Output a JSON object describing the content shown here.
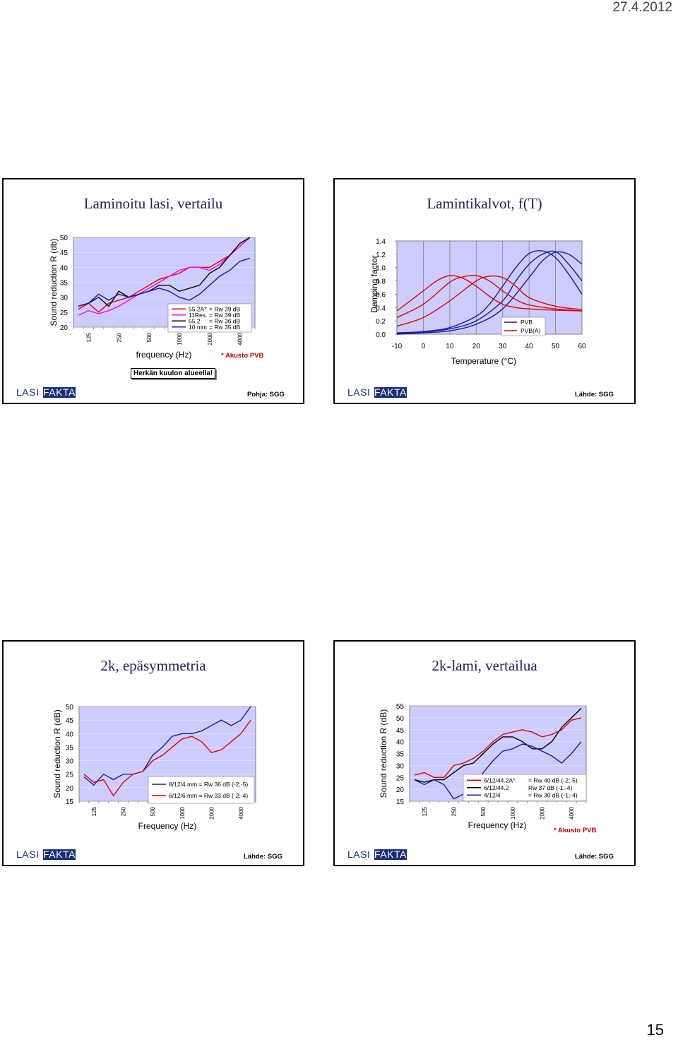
{
  "page": {
    "date": "27.4.2012",
    "page_number": "15"
  },
  "slides": [
    {
      "title": "Laminoitu lasi, vertailu",
      "source": "Pohja: SGG",
      "logo": [
        "LASI",
        "FAKTA"
      ],
      "note": "Herkän kuulon alueella!",
      "star_note": "* Akusto PVB"
    },
    {
      "title": "Lamintikalvot, f(T)",
      "source": "Lähde: SGG",
      "logo": [
        "LASI",
        "FAKTA"
      ]
    },
    {
      "title": "2k, epäsymmetria",
      "source": "Lähde: SGG",
      "logo": [
        "LASI",
        "FAKTA"
      ]
    },
    {
      "title": "2k-lami, vertailua",
      "source": "Lähde: SGG",
      "logo": [
        "LASI",
        "FAKTA"
      ],
      "star_note": "* Akusto PVB"
    }
  ],
  "chart_data": [
    {
      "type": "line",
      "ylabel": "Sound reduction R (db)",
      "xlabel": "frequency (Hz)",
      "x_ticks": [
        "125",
        "250",
        "500",
        "1000",
        "2000",
        "4000"
      ],
      "y_ticks": [
        "20",
        "25",
        "30",
        "35",
        "40",
        "45",
        "50"
      ],
      "ylim": [
        20,
        50
      ],
      "x": [
        100,
        125,
        160,
        200,
        250,
        315,
        400,
        500,
        630,
        800,
        1000,
        1250,
        1600,
        2000,
        2500,
        3150,
        4000,
        5000
      ],
      "series": [
        {
          "name": "55.2A*",
          "rw": "= Rw 39 dB",
          "color": "#e00000",
          "values": [
            26,
            28,
            25,
            28,
            29,
            30,
            32,
            34,
            36,
            37,
            38,
            40,
            40,
            40,
            42,
            44,
            47,
            50
          ]
        },
        {
          "name": "11Res.",
          "rw": "= Rw 39 dB",
          "color": "#ff00ff",
          "values": [
            24,
            25.5,
            24.5,
            25.5,
            27,
            29,
            31,
            33,
            35,
            37,
            39,
            40,
            40,
            39,
            41,
            44,
            47,
            50
          ]
        },
        {
          "name": "55.2",
          "rw": "= Rw 36 dB",
          "color": "#000000",
          "values": [
            27,
            28,
            30,
            27,
            32,
            30,
            31,
            32,
            34,
            34,
            32,
            33,
            34,
            38,
            40,
            44,
            48,
            50
          ]
        },
        {
          "name": "10 mm",
          "rw": "= Rw 35 dB",
          "color": "#1a1aa0",
          "values": [
            27,
            28,
            31,
            29,
            31,
            30,
            31,
            32,
            33,
            32,
            30,
            29,
            31,
            34,
            37,
            39,
            42,
            43
          ]
        }
      ]
    },
    {
      "type": "line",
      "ylabel": "Damping factor",
      "xlabel": "Temperature (°C)",
      "x_ticks": [
        "-10",
        "0",
        "10",
        "20",
        "30",
        "40",
        "50",
        "60"
      ],
      "y_ticks": [
        "0.0",
        "0.2",
        "0.4",
        "0.6",
        "0.8",
        "1.0",
        "1.2",
        "1.4"
      ],
      "xlim": [
        -10,
        60
      ],
      "ylim": [
        0,
        1.4
      ],
      "legend": [
        "PVB",
        "PVB(A)"
      ],
      "legend_colors": [
        "#1a1aa0",
        "#e00000"
      ],
      "legend_position": "bottom-right",
      "series": [
        {
          "name": "PVB",
          "color": "#1a1aa0",
          "x": [
            -10,
            0,
            10,
            20,
            25,
            30,
            35,
            40,
            45,
            50,
            55,
            60
          ],
          "values": [
            0.02,
            0.04,
            0.1,
            0.27,
            0.45,
            0.72,
            1.0,
            1.21,
            1.25,
            1.15,
            0.9,
            0.6
          ]
        },
        {
          "name": "PVB",
          "color": "#1a1aa0",
          "x": [
            -10,
            0,
            10,
            20,
            30,
            35,
            40,
            45,
            50,
            55,
            60
          ],
          "values": [
            0.01,
            0.03,
            0.08,
            0.2,
            0.5,
            0.8,
            1.05,
            1.2,
            1.24,
            1.05,
            0.8
          ]
        },
        {
          "name": "PVB",
          "color": "#1a1aa0",
          "x": [
            -10,
            0,
            10,
            20,
            30,
            40,
            45,
            50,
            55,
            60
          ],
          "values": [
            0.0,
            0.02,
            0.05,
            0.15,
            0.38,
            0.85,
            1.1,
            1.23,
            1.2,
            1.05
          ]
        },
        {
          "name": "PVB(A)",
          "color": "#e00000",
          "x": [
            -10,
            0,
            5,
            10,
            15,
            20,
            25,
            30,
            35,
            40,
            50,
            60
          ],
          "values": [
            0.35,
            0.65,
            0.8,
            0.88,
            0.84,
            0.72,
            0.57,
            0.45,
            0.4,
            0.38,
            0.36,
            0.35
          ]
        },
        {
          "name": "PVB(A)",
          "color": "#e00000",
          "x": [
            -10,
            0,
            10,
            15,
            20,
            25,
            30,
            35,
            40,
            50,
            60
          ],
          "values": [
            0.25,
            0.45,
            0.78,
            0.86,
            0.88,
            0.8,
            0.65,
            0.52,
            0.44,
            0.38,
            0.35
          ]
        },
        {
          "name": "PVB(A)",
          "color": "#e00000",
          "x": [
            -10,
            0,
            10,
            20,
            25,
            30,
            35,
            40,
            50,
            60
          ],
          "values": [
            0.12,
            0.25,
            0.5,
            0.8,
            0.87,
            0.85,
            0.72,
            0.55,
            0.42,
            0.37
          ]
        }
      ]
    },
    {
      "type": "line",
      "ylabel": "Sound reduction R (dB)",
      "xlabel": "Frequency (Hz)",
      "x_ticks": [
        "125",
        "250",
        "500",
        "1000",
        "2000",
        "4000"
      ],
      "y_ticks": [
        "15",
        "20",
        "25",
        "30",
        "35",
        "40",
        "45",
        "50"
      ],
      "ylim": [
        15,
        50
      ],
      "x": [
        100,
        125,
        160,
        200,
        250,
        315,
        400,
        500,
        630,
        800,
        1000,
        1250,
        1600,
        2000,
        2500,
        3150,
        4000,
        5000
      ],
      "series": [
        {
          "name": "8/12/4 mm = Rw 36 dB (-2;-5)",
          "color": "#1a1aa0",
          "values": [
            24,
            21,
            25,
            23,
            25,
            25,
            26,
            32,
            35,
            39,
            40,
            40,
            41,
            43,
            45,
            43,
            45,
            50
          ]
        },
        {
          "name": "6/12/6 mm = Rw 33 dB (-2;-4)",
          "color": "#e00000",
          "values": [
            25,
            22,
            23,
            17,
            22,
            25,
            26,
            30,
            32,
            35,
            38,
            39,
            37,
            33,
            34,
            37,
            40,
            45
          ]
        }
      ]
    },
    {
      "type": "line",
      "ylabel": "Sound reduction R (dB)",
      "xlabel": "Frequency (Hz)",
      "x_ticks": [
        "125",
        "250",
        "500",
        "1000",
        "2000",
        "4000"
      ],
      "y_ticks": [
        "15",
        "20",
        "25",
        "30",
        "35",
        "40",
        "45",
        "50",
        "55"
      ],
      "ylim": [
        15,
        55
      ],
      "x": [
        100,
        125,
        160,
        200,
        250,
        315,
        400,
        500,
        630,
        800,
        1000,
        1250,
        1600,
        2000,
        2500,
        3150,
        4000,
        5000
      ],
      "series": [
        {
          "name": "6/12/44.2A*",
          "rw": "= Rw 40 dB (-2;-5)",
          "color": "#e00000",
          "values": [
            26,
            27,
            25,
            25,
            30,
            31,
            33,
            36,
            40,
            43,
            44,
            45,
            44,
            42,
            43,
            45,
            49,
            50
          ]
        },
        {
          "name": "6/12/44.2",
          "rw": "Rw 37 dB (-1;-4)",
          "color": "#000000",
          "values": [
            24,
            23,
            24,
            24,
            27,
            30,
            31,
            35,
            39,
            42,
            42,
            40,
            37,
            37,
            40,
            46,
            50,
            54
          ]
        },
        {
          "name": "4/12/4",
          "rw": "= Rw 30 dB (-1;-4)",
          "color": "#1a1aa0",
          "values": [
            24,
            22,
            24,
            22,
            16,
            18,
            20,
            27,
            32,
            36,
            37,
            39,
            38,
            36,
            34,
            31,
            35,
            40
          ]
        }
      ]
    }
  ]
}
